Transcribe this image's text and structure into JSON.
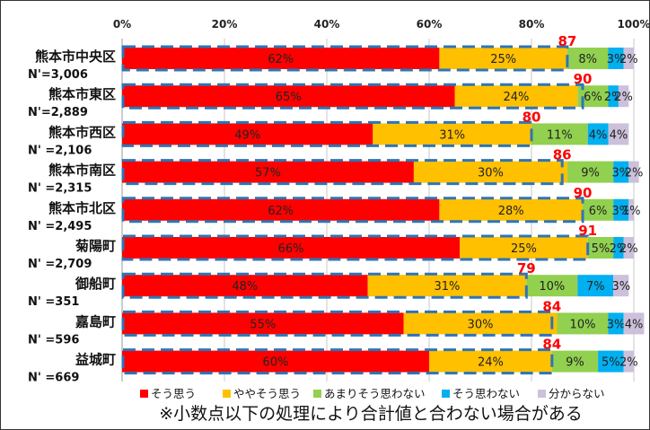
{
  "chart_data": {
    "type": "bar",
    "orientation": "horizontal",
    "stacked": true,
    "xlim": [
      0,
      100
    ],
    "x_ticks": [
      "0%",
      "20%",
      "40%",
      "60%",
      "80%",
      "100%"
    ],
    "grid": true,
    "legend_position": "bottom",
    "categories": [
      {
        "name": "熊本市中央区",
        "n": "N'=3,006"
      },
      {
        "name": "熊本市東区",
        "n": "N'=2,889"
      },
      {
        "name": "熊本市西区",
        "n": "N' =2,106"
      },
      {
        "name": "熊本市南区",
        "n": "N' =2,315"
      },
      {
        "name": "熊本市北区",
        "n": "N' =2,495"
      },
      {
        "name": "菊陽町",
        "n": "N' =2,709"
      },
      {
        "name": "御船町",
        "n": "N' =351"
      },
      {
        "name": "嘉島町",
        "n": "N' =596"
      },
      {
        "name": "益城町",
        "n": "N' =669"
      }
    ],
    "series": [
      {
        "name": "そう思う",
        "color": "#ff0000",
        "values": [
          62,
          65,
          49,
          57,
          62,
          66,
          48,
          55,
          60
        ],
        "labels": [
          "62%",
          "65%",
          "49%",
          "57%",
          "62%",
          "66%",
          "48%",
          "55%",
          "60%"
        ]
      },
      {
        "name": "ややそう思う",
        "color": "#ffc000",
        "values": [
          25,
          24,
          31,
          30,
          28,
          25,
          31,
          30,
          24
        ],
        "labels": [
          "25%",
          "24%",
          "31%",
          "30%",
          "28%",
          "25%",
          "31%",
          "30%",
          "24%"
        ]
      },
      {
        "name": "あまりそう思わない",
        "color": "#92d050",
        "values": [
          8,
          6,
          11,
          9,
          6,
          5,
          10,
          10,
          9
        ],
        "labels": [
          "8%",
          "6%",
          "11%",
          "9%",
          "6%",
          "5%",
          "10%",
          "10%",
          "9%"
        ]
      },
      {
        "name": "そう思わない",
        "color": "#00b0f0",
        "values": [
          3,
          2,
          4,
          3,
          3,
          2,
          7,
          3,
          5
        ],
        "labels": [
          "3%",
          "2%",
          "4%",
          "3%",
          "3%",
          "2%",
          "7%",
          "3%",
          "5%"
        ]
      },
      {
        "name": "分からない",
        "color": "#ccc0da",
        "values": [
          2,
          2,
          4,
          2,
          1,
          2,
          3,
          4,
          2
        ],
        "labels": [
          "2%",
          "2%",
          "4%",
          "2%",
          "1%",
          "2%",
          "3%",
          "4%",
          "2%"
        ]
      }
    ],
    "totals": {
      "values": [
        87,
        90,
        80,
        86,
        90,
        91,
        79,
        84,
        84
      ],
      "labels": [
        "87",
        "90",
        "80",
        "86",
        "90",
        "91",
        "79",
        "84",
        "84"
      ],
      "color": "#ff0000",
      "outline_color": "#2e75b6"
    },
    "note": "※小数点以下の処理により合計値と合わない場合がある"
  }
}
